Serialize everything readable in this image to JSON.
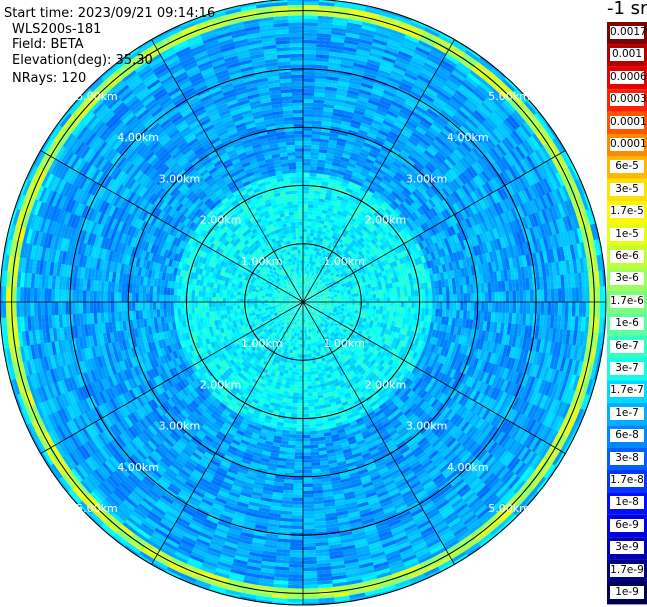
{
  "info": {
    "start_time": "Start time: 2023/09/21 09:14:16",
    "instrument": "WLS200s-181",
    "field": "Field: BETA",
    "elevation": "Elevation(deg): 35.30",
    "nrays": "NRays: 120"
  },
  "colorbar": {
    "unit": "-1 sr",
    "labels": [
      "0.0017",
      "0.001",
      "0.0006",
      "0.0003",
      "0.00017",
      "0.0001",
      "6e-5",
      "3e-5",
      "1.7e-5",
      "1e-5",
      "6e-6",
      "3e-6",
      "1.7e-6",
      "1e-6",
      "6e-7",
      "3e-7",
      "1.7e-7",
      "1e-7",
      "6e-8",
      "3e-8",
      "1.7e-8",
      "1e-8",
      "6e-9",
      "3e-9",
      "1.7e-9",
      "1e-9"
    ],
    "colors": [
      "#7f0000",
      "#b40000",
      "#e60000",
      "#ff2000",
      "#ff5500",
      "#ff8a00",
      "#ffb800",
      "#ffe000",
      "#fff700",
      "#e4ff13",
      "#c0ff36",
      "#9dff5a",
      "#7aff7d",
      "#5affa0",
      "#36ffc3",
      "#13fce6",
      "#00d8ff",
      "#00b0ff",
      "#0088ff",
      "#0060ff",
      "#0038ff",
      "#0010ff",
      "#0000e6",
      "#0000b4",
      "#000082",
      "#000050"
    ]
  },
  "chart_data": {
    "type": "heatmap",
    "projection": "polar (PPI scan)",
    "range_rings": [
      "1.00km",
      "2.00km",
      "3.00km",
      "4.00km",
      "5.00km"
    ],
    "range_ring_values_km": [
      1,
      2,
      3,
      4,
      5
    ],
    "max_range_km": 5.2,
    "radial_lines_deg": [
      0,
      30,
      60,
      90,
      120,
      150
    ],
    "field": "BETA",
    "nrays": 120,
    "value_range": [
      1e-09,
      0.0017
    ],
    "description_of_values": [
      {
        "range_km": [
          0,
          0.5
        ],
        "beta_approx": 3e-07
      },
      {
        "range_km": [
          0.5,
          2.2
        ],
        "beta_approx": 2e-07
      },
      {
        "range_km": [
          2.2,
          4.8
        ],
        "beta_approx": 6e-08
      },
      {
        "range_km": [
          4.9,
          5.1
        ],
        "beta_approx": 3e-06
      },
      {
        "range_km": [
          5.1,
          5.2
        ],
        "beta_approx": 1e-07
      }
    ]
  }
}
